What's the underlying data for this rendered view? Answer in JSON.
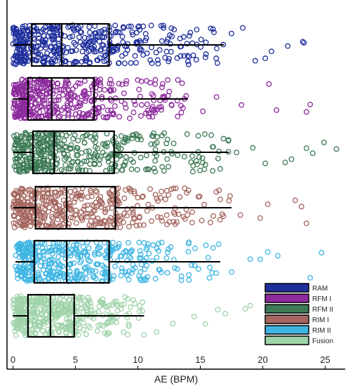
{
  "chart_data": {
    "type": "box",
    "orientation": "horizontal",
    "xlabel": "AE (BPM)",
    "ylabel": "",
    "xlim": [
      -0.5,
      26
    ],
    "xticks": [
      0,
      5,
      10,
      15,
      20,
      25
    ],
    "grid": false,
    "legend_position": "bottom-right",
    "series": [
      {
        "name": "RAM",
        "color": "#1f2f9c",
        "whisker_low": 0,
        "q1": 1.5,
        "median": 3.9,
        "q3": 7.7,
        "whisker_high": 16.9,
        "outliers": [
          17.5,
          18.4,
          19.4,
          20.2,
          20.7,
          22.0,
          23.2,
          23.3
        ]
      },
      {
        "name": "RFM I",
        "color": "#8c2a9c",
        "whisker_low": 0,
        "q1": 1.2,
        "median": 3.1,
        "q3": 6.5,
        "whisker_high": 14.0,
        "outliers": [
          15.2,
          16.3,
          18.3,
          20.5,
          21.1,
          23.5,
          23.8
        ]
      },
      {
        "name": "RFM II",
        "color": "#3d7a55",
        "whisker_low": 0,
        "q1": 1.6,
        "median": 3.3,
        "q3": 8.1,
        "whisker_high": 17.3,
        "outliers": [
          17.9,
          19.2,
          20.2,
          21.8,
          22.3,
          23.5,
          24.0,
          24.9,
          25.9
        ]
      },
      {
        "name": "RIM I",
        "color": "#a5665f",
        "whisker_low": 0,
        "q1": 1.8,
        "median": 4.3,
        "q3": 8.2,
        "whisker_high": 17.5,
        "outliers": [
          18.2,
          19.8,
          20.4,
          22.6,
          23.1,
          23.5
        ]
      },
      {
        "name": "RIM II",
        "color": "#3fb5e3",
        "whisker_low": 0.2,
        "q1": 1.7,
        "median": 4.3,
        "q3": 7.7,
        "whisker_high": 16.6,
        "outliers": [
          17.5,
          19.0,
          19.8,
          20.4,
          21.2,
          23.8,
          24.7
        ]
      },
      {
        "name": "Fusion",
        "color": "#9fd3a9",
        "whisker_low": 0,
        "q1": 1.2,
        "median": 3.0,
        "q3": 4.9,
        "whisker_high": 10.5,
        "outliers": [
          11.5,
          12.8,
          14.5,
          15.4,
          16.4,
          17.0,
          18.6,
          19.0
        ]
      }
    ]
  }
}
